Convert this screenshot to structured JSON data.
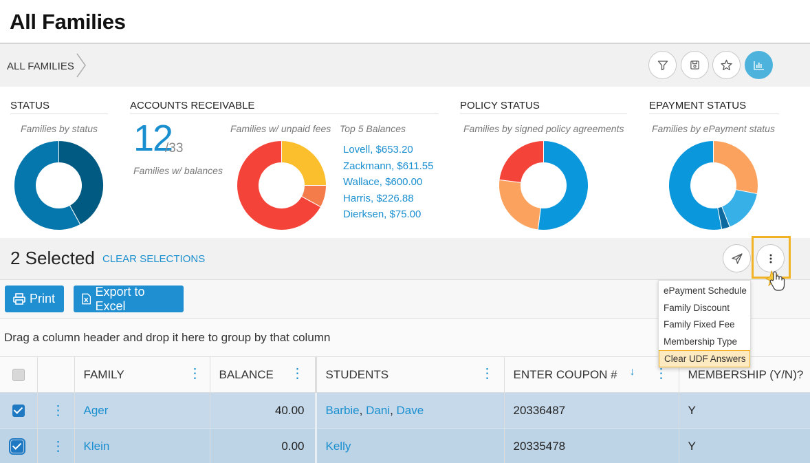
{
  "page": {
    "title": "All Families"
  },
  "breadcrumb": {
    "label": "ALL FAMILIES"
  },
  "toolbar_icons": [
    "filter-icon",
    "save-icon",
    "star-icon",
    "chart-icon"
  ],
  "panels": {
    "status": {
      "title": "STATUS",
      "subtitle": "Families by status",
      "slices": [
        {
          "value": 42,
          "color": "#005a82"
        },
        {
          "value": 58,
          "color": "#0677ad"
        }
      ]
    },
    "ar": {
      "title": "ACCOUNTS RECEIVABLE",
      "count": "12",
      "total": "/33",
      "count_caption": "Families w/ balances",
      "chart_caption": "Families w/ unpaid fees",
      "slices": [
        {
          "value": 25,
          "color": "#fbbe2c"
        },
        {
          "value": 8,
          "color": "#f47c4b"
        },
        {
          "value": 67,
          "color": "#f4443a"
        }
      ],
      "top5_title": "Top 5 Balances",
      "top5": [
        "Lovell, $653.20",
        "Zackmann, $611.55",
        "Wallace, $600.00",
        "Harris, $226.88",
        "Dierksen, $75.00"
      ]
    },
    "policy": {
      "title": "POLICY STATUS",
      "subtitle": "Families by signed policy agreements",
      "slices": [
        {
          "value": 52,
          "color": "#0b97dc"
        },
        {
          "value": 25,
          "color": "#fba35e"
        },
        {
          "value": 23,
          "color": "#f4443a"
        }
      ]
    },
    "epayment": {
      "title": "EPAYMENT STATUS",
      "subtitle": "Families by ePayment status",
      "slices": [
        {
          "value": 28,
          "color": "#fba35e"
        },
        {
          "value": 16,
          "color": "#36b0e6"
        },
        {
          "value": 3,
          "color": "#0d6a9e"
        },
        {
          "value": 53,
          "color": "#0b97dc"
        }
      ]
    }
  },
  "selection": {
    "count_label": "2 Selected",
    "clear_label": "CLEAR SELECTIONS"
  },
  "actions": {
    "print_label": "Print",
    "export_label": "Export to Excel"
  },
  "group_hint": "Drag a column header and drop it here to group by that column",
  "dropdown": {
    "items": [
      "ePayment Schedule",
      "Family Discount",
      "Family Fixed Fee",
      "Membership Type",
      "Clear UDF Answers"
    ]
  },
  "table": {
    "columns": [
      "FAMILY",
      "BALANCE",
      "STUDENTS",
      "ENTER COUPON #",
      "MEMBERSHIP (Y/N)?"
    ],
    "rows": [
      {
        "family": "Ager",
        "balance": "40.00",
        "students": [
          "Barbie",
          "Dani",
          "Dave"
        ],
        "coupon": "20336487",
        "membership": "Y"
      },
      {
        "family": "Klein",
        "balance": "0.00",
        "students": [
          "Kelly"
        ],
        "coupon": "20335478",
        "membership": "Y"
      }
    ]
  },
  "colors": {
    "accent": "#1a8fcf",
    "button": "#1f8fd1",
    "highlight": "#f0b325"
  }
}
